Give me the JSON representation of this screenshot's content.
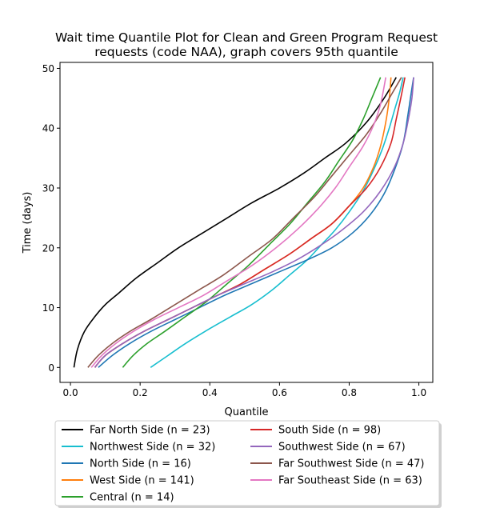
{
  "chart_data": {
    "type": "line",
    "title_line1": "Wait time Quantile Plot for Clean and Green Program Request",
    "title_line2": "requests (code NAA), graph covers 95th quantile",
    "xlabel": "Quantile",
    "ylabel": "Time (days)",
    "xlim": [
      -0.03,
      1.04
    ],
    "ylim": [
      -2.5,
      51
    ],
    "xticks": [
      "0.0",
      "0.2",
      "0.4",
      "0.6",
      "0.8",
      "1.0"
    ],
    "yticks": [
      "0",
      "10",
      "20",
      "30",
      "40",
      "50"
    ],
    "grid": false,
    "legend_position": "bottom",
    "series": [
      {
        "name": "Far North Side (n = 23)",
        "color": "#000000",
        "x": [
          0.01,
          0.02,
          0.04,
          0.07,
          0.1,
          0.14,
          0.19,
          0.25,
          0.31,
          0.38,
          0.45,
          0.52,
          0.6,
          0.67,
          0.73,
          0.79,
          0.85,
          0.9,
          0.935
        ],
        "y": [
          0,
          3,
          6,
          8.5,
          10.5,
          12.5,
          15,
          17.5,
          20,
          22.5,
          25,
          27.5,
          30,
          32.5,
          35,
          37.5,
          41,
          45,
          48.5
        ]
      },
      {
        "name": "Northwest Side (n = 32)",
        "color": "#17becf",
        "x": [
          0.23,
          0.28,
          0.33,
          0.4,
          0.46,
          0.52,
          0.58,
          0.63,
          0.68,
          0.72,
          0.76,
          0.8,
          0.84,
          0.87,
          0.895,
          0.915,
          0.93,
          0.945,
          0.955
        ],
        "y": [
          0,
          2,
          4,
          6.5,
          8.5,
          10.5,
          13,
          15.5,
          18,
          20.5,
          23,
          26,
          29.5,
          33,
          36.5,
          40,
          43,
          46,
          48.5
        ]
      },
      {
        "name": "North Side (n = 16)",
        "color": "#1f77b4",
        "x": [
          0.08,
          0.12,
          0.17,
          0.23,
          0.3,
          0.37,
          0.44,
          0.52,
          0.6,
          0.68,
          0.75,
          0.81,
          0.86,
          0.9,
          0.93,
          0.955,
          0.968,
          0.977,
          0.985
        ],
        "y": [
          0,
          2,
          4,
          6,
          8,
          10,
          12,
          14,
          16,
          18,
          20,
          22.5,
          25.5,
          29,
          33,
          37.5,
          42,
          45.5,
          48.5
        ]
      },
      {
        "name": "West Side (n = 141)",
        "color": "#ff7f0e",
        "x": [
          0.07,
          0.1,
          0.15,
          0.21,
          0.28,
          0.35,
          0.42,
          0.49,
          0.56,
          0.63,
          0.69,
          0.75,
          0.8,
          0.84,
          0.87,
          0.89,
          0.905,
          0.915,
          0.92
        ],
        "y": [
          0,
          2,
          4,
          6,
          8,
          10,
          12,
          14,
          16.5,
          19,
          21.5,
          24,
          27,
          30,
          33.5,
          37,
          41,
          45,
          48.5
        ]
      },
      {
        "name": "Central (n = 14)",
        "color": "#2ca02c",
        "x": [
          0.15,
          0.18,
          0.22,
          0.27,
          0.33,
          0.39,
          0.45,
          0.51,
          0.57,
          0.63,
          0.68,
          0.73,
          0.77,
          0.81,
          0.84,
          0.865,
          0.89
        ],
        "y": [
          0,
          2,
          4,
          6,
          8.5,
          11,
          14,
          17,
          20.5,
          24,
          27.5,
          31,
          34.5,
          38,
          41.5,
          45,
          48.5
        ]
      },
      {
        "name": "South Side (n = 98)",
        "color": "#d62728",
        "x": [
          0.07,
          0.1,
          0.15,
          0.21,
          0.28,
          0.35,
          0.42,
          0.49,
          0.56,
          0.63,
          0.69,
          0.75,
          0.8,
          0.85,
          0.89,
          0.92,
          0.935,
          0.948,
          0.96
        ],
        "y": [
          0,
          2,
          4,
          6,
          8,
          10,
          12,
          14,
          16.5,
          19,
          21.5,
          24,
          27,
          30,
          33.5,
          37.5,
          41.5,
          45,
          48.5
        ]
      },
      {
        "name": "Southwest Side (n = 67)",
        "color": "#9467bd",
        "x": [
          0.07,
          0.1,
          0.15,
          0.21,
          0.28,
          0.35,
          0.42,
          0.5,
          0.58,
          0.65,
          0.72,
          0.78,
          0.84,
          0.89,
          0.93,
          0.955,
          0.97,
          0.98,
          0.985
        ],
        "y": [
          0,
          2,
          4,
          6,
          8,
          10,
          12,
          14,
          16,
          18,
          20.5,
          23,
          26,
          29.5,
          33.5,
          37.5,
          41.5,
          45,
          48.5
        ]
      },
      {
        "name": "Far Southwest Side (n = 47)",
        "color": "#8c564b",
        "x": [
          0.05,
          0.08,
          0.12,
          0.17,
          0.23,
          0.3,
          0.37,
          0.44,
          0.51,
          0.58,
          0.64,
          0.7,
          0.75,
          0.8,
          0.85,
          0.89,
          0.92,
          0.95
        ],
        "y": [
          0,
          2,
          4,
          6,
          8,
          10.5,
          13,
          15.5,
          18.5,
          21.5,
          25,
          28.5,
          32,
          35.5,
          39,
          42.5,
          45.5,
          48.5
        ]
      },
      {
        "name": "Far Southeast Side (n = 63)",
        "color": "#e377c2",
        "x": [
          0.06,
          0.09,
          0.13,
          0.18,
          0.24,
          0.31,
          0.38,
          0.45,
          0.52,
          0.59,
          0.65,
          0.71,
          0.76,
          0.8,
          0.84,
          0.87,
          0.89,
          0.905
        ],
        "y": [
          0,
          2,
          4,
          6,
          8,
          10,
          12,
          14.5,
          17,
          20,
          23,
          26.5,
          30,
          33.5,
          37,
          40.5,
          44,
          48.5
        ]
      }
    ]
  }
}
